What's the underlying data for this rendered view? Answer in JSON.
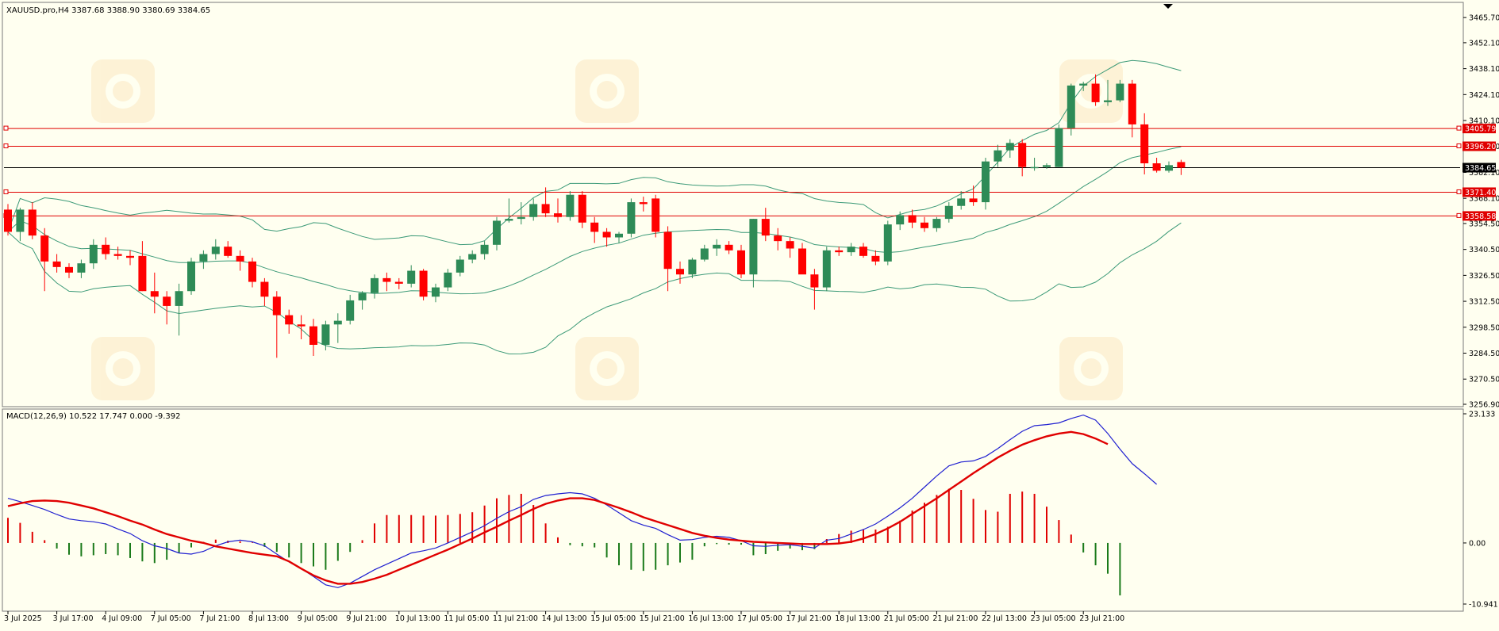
{
  "chart_data": [
    {
      "type": "candlestick",
      "title": "XAUUSD.pro,H4",
      "ohlc_text": "3387.68 3388.90 3380.69 3384.65",
      "ylim": [
        3256.9,
        3472.6
      ],
      "y_ticks": [
        "3465.70",
        "3452.10",
        "3438.10",
        "3424.10",
        "3410.10",
        "3396.10",
        "3382.10",
        "3368.10",
        "3354.50",
        "3340.50",
        "3326.50",
        "3312.50",
        "3298.50",
        "3284.50",
        "3270.50",
        "3256.90"
      ],
      "current_price": "3384.65",
      "levels": [
        {
          "price": 3405.79,
          "label": "3405.79"
        },
        {
          "price": 3396.2,
          "label": "3396.20"
        },
        {
          "price": 3371.4,
          "label": "3371.40"
        },
        {
          "price": 3358.58,
          "label": "3358.58"
        }
      ],
      "candles": [
        [
          3362,
          3365,
          3348,
          3350
        ],
        [
          3350,
          3363,
          3345,
          3362
        ],
        [
          3362,
          3366,
          3346,
          3348
        ],
        [
          3348,
          3352,
          3318,
          3334
        ],
        [
          3334,
          3338,
          3328,
          3331
        ],
        [
          3331,
          3333,
          3325,
          3328
        ],
        [
          3328,
          3335,
          3325,
          3333
        ],
        [
          3333,
          3346,
          3330,
          3343
        ],
        [
          3343,
          3347,
          3335,
          3338
        ],
        [
          3338,
          3342,
          3335,
          3337
        ],
        [
          3337,
          3340,
          3332,
          3336
        ],
        [
          3337,
          3345,
          3318,
          3318
        ],
        [
          3318,
          3328,
          3306,
          3315
        ],
        [
          3315,
          3318,
          3300,
          3310
        ],
        [
          3310,
          3322,
          3294,
          3318
        ],
        [
          3318,
          3336,
          3316,
          3334
        ],
        [
          3334,
          3340,
          3330,
          3338
        ],
        [
          3338,
          3346,
          3335,
          3342
        ],
        [
          3342,
          3345,
          3336,
          3337
        ],
        [
          3337,
          3340,
          3329,
          3334
        ],
        [
          3334,
          3336,
          3320,
          3323
        ],
        [
          3323,
          3325,
          3310,
          3315
        ],
        [
          3315,
          3318,
          3282,
          3305
        ],
        [
          3305,
          3308,
          3295,
          3300
        ],
        [
          3300,
          3305,
          3292,
          3299
        ],
        [
          3299,
          3303,
          3283,
          3289
        ],
        [
          3289,
          3302,
          3286,
          3300
        ],
        [
          3300,
          3306,
          3290,
          3302
        ],
        [
          3302,
          3316,
          3300,
          3313
        ],
        [
          3313,
          3318,
          3308,
          3317
        ],
        [
          3317,
          3327,
          3314,
          3325
        ],
        [
          3325,
          3328,
          3318,
          3323
        ],
        [
          3323,
          3325,
          3319,
          3322
        ],
        [
          3322,
          3332,
          3320,
          3329
        ],
        [
          3329,
          3330,
          3313,
          3315
        ],
        [
          3315,
          3322,
          3312,
          3320
        ],
        [
          3320,
          3330,
          3318,
          3328
        ],
        [
          3328,
          3337,
          3326,
          3335
        ],
        [
          3335,
          3340,
          3333,
          3338
        ],
        [
          3338,
          3345,
          3335,
          3343
        ],
        [
          3343,
          3358,
          3340,
          3356
        ],
        [
          3356,
          3368,
          3355,
          3357
        ],
        [
          3357,
          3366,
          3354,
          3358
        ],
        [
          3358,
          3368,
          3356,
          3365
        ],
        [
          3365,
          3374,
          3358,
          3360
        ],
        [
          3360,
          3368,
          3355,
          3358
        ],
        [
          3358,
          3372,
          3356,
          3370
        ],
        [
          3370,
          3372,
          3352,
          3355
        ],
        [
          3355,
          3358,
          3344,
          3350
        ],
        [
          3350,
          3352,
          3342,
          3347
        ],
        [
          3347,
          3350,
          3344,
          3349
        ],
        [
          3349,
          3368,
          3347,
          3366
        ],
        [
          3366,
          3369,
          3361,
          3365
        ],
        [
          3368,
          3370,
          3347,
          3350
        ],
        [
          3350,
          3353,
          3318,
          3330
        ],
        [
          3330,
          3334,
          3322,
          3327
        ],
        [
          3327,
          3336,
          3325,
          3335
        ],
        [
          3335,
          3343,
          3334,
          3341
        ],
        [
          3341,
          3346,
          3337,
          3343
        ],
        [
          3343,
          3345,
          3338,
          3340
        ],
        [
          3340,
          3343,
          3325,
          3327
        ],
        [
          3327,
          3357,
          3320,
          3357
        ],
        [
          3357,
          3363,
          3345,
          3348
        ],
        [
          3348,
          3352,
          3340,
          3345
        ],
        [
          3345,
          3347,
          3336,
          3341
        ],
        [
          3341,
          3344,
          3328,
          3327
        ],
        [
          3327,
          3330,
          3308,
          3320
        ],
        [
          3320,
          3342,
          3318,
          3340
        ],
        [
          3340,
          3342,
          3337,
          3339
        ],
        [
          3339,
          3344,
          3337,
          3342
        ],
        [
          3342,
          3344,
          3336,
          3337
        ],
        [
          3337,
          3340,
          3332,
          3334
        ],
        [
          3334,
          3356,
          3332,
          3354
        ],
        [
          3354,
          3361,
          3351,
          3359
        ],
        [
          3359,
          3362,
          3352,
          3355
        ],
        [
          3355,
          3358,
          3350,
          3352
        ],
        [
          3352,
          3358,
          3350,
          3357
        ],
        [
          3357,
          3366,
          3355,
          3364
        ],
        [
          3364,
          3372,
          3362,
          3368
        ],
        [
          3368,
          3375,
          3364,
          3366
        ],
        [
          3366,
          3390,
          3362,
          3388
        ],
        [
          3388,
          3397,
          3385,
          3394
        ],
        [
          3394,
          3400,
          3390,
          3398
        ],
        [
          3398,
          3400,
          3380,
          3385
        ],
        [
          3385,
          3390,
          3383,
          3385
        ],
        [
          3385,
          3387,
          3384,
          3386
        ],
        [
          3385,
          3408,
          3385,
          3406
        ],
        [
          3406,
          3430,
          3402,
          3429
        ],
        [
          3429,
          3431,
          3426,
          3430
        ],
        [
          3430,
          3435,
          3418,
          3420
        ],
        [
          3420,
          3432,
          3418,
          3421
        ],
        [
          3421,
          3432,
          3420,
          3430
        ],
        [
          3430,
          3432,
          3401,
          3408
        ],
        [
          3408,
          3414,
          3381,
          3387
        ],
        [
          3387,
          3390,
          3382,
          3383
        ],
        [
          3383,
          3388,
          3382,
          3386
        ],
        [
          3387.68,
          3388.9,
          3380.69,
          3384.65
        ]
      ],
      "x_labels": [
        "3 Jul 2025",
        "3 Jul 17:00",
        "4 Jul 09:00",
        "7 Jul 05:00",
        "7 Jul 21:00",
        "8 Jul 13:00",
        "9 Jul 05:00",
        "9 Jul 21:00",
        "10 Jul 13:00",
        "11 Jul 05:00",
        "11 Jul 21:00",
        "14 Jul 13:00",
        "15 Jul 05:00",
        "15 Jul 21:00",
        "16 Jul 13:00",
        "17 Jul 05:00",
        "17 Jul 21:00",
        "18 Jul 13:00",
        "21 Jul 05:00",
        "21 Jul 21:00",
        "22 Jul 13:00",
        "23 Jul 05:00",
        "23 Jul 21:00"
      ],
      "bollinger_bands": {
        "color": "#3c9a78"
      },
      "colors": {
        "bull": "#2e8b57",
        "bear": "#ff0000",
        "level": "#e00000",
        "current_line": "#000000"
      }
    },
    {
      "type": "macd",
      "title": "MACD(12,26,9) 10.522 17.747 0.000 -9.392",
      "ylim": [
        -10.941,
        23.133
      ],
      "y_ticks": [
        "23.133",
        "0.00",
        "-10.941"
      ],
      "macd_line": [
        8.0,
        7.4,
        6.7,
        6.0,
        5.1,
        4.3,
        4.0,
        3.8,
        3.4,
        2.5,
        1.7,
        0.4,
        -0.5,
        -1.0,
        -1.8,
        -2.0,
        -1.5,
        -0.5,
        0.2,
        0.5,
        0.2,
        -0.5,
        -2.0,
        -3.4,
        -4.6,
        -6.0,
        -7.5,
        -8.0,
        -7.2,
        -6.0,
        -4.8,
        -3.8,
        -2.8,
        -1.8,
        -1.4,
        -0.9,
        0.0,
        1.0,
        2.0,
        3.1,
        4.4,
        5.6,
        6.5,
        7.8,
        8.5,
        8.8,
        9.0,
        8.8,
        8.0,
        6.8,
        5.4,
        4.0,
        3.2,
        2.6,
        1.5,
        0.5,
        0.6,
        1.0,
        1.2,
        1.0,
        0.4,
        -0.5,
        -0.6,
        -0.4,
        -0.3,
        -0.6,
        -0.9,
        0.5,
        0.8,
        1.6,
        2.4,
        3.4,
        4.8,
        6.3,
        8.0,
        10.0,
        12.0,
        13.8,
        14.5,
        14.7,
        15.5,
        16.9,
        18.5,
        20.0,
        21.0,
        21.2,
        21.5,
        22.3,
        22.9,
        22.0,
        19.6,
        16.8,
        14.2,
        12.4,
        10.5
      ],
      "signal_line": [
        6.6,
        7.1,
        7.5,
        7.6,
        7.5,
        7.2,
        6.7,
        6.2,
        5.5,
        4.8,
        4.0,
        3.3,
        2.4,
        1.6,
        1.0,
        0.4,
        0.0,
        -0.6,
        -1.0,
        -1.4,
        -1.8,
        -2.1,
        -2.4,
        -3.3,
        -4.6,
        -5.8,
        -6.7,
        -7.3,
        -7.3,
        -7.0,
        -6.4,
        -5.7,
        -4.8,
        -3.9,
        -3.0,
        -2.1,
        -1.2,
        -0.2,
        0.8,
        1.9,
        2.9,
        4.0,
        5.0,
        6.1,
        7.0,
        7.6,
        8.0,
        8.0,
        7.7,
        7.0,
        6.3,
        5.5,
        4.6,
        3.9,
        3.2,
        2.5,
        1.8,
        1.3,
        0.9,
        0.6,
        0.4,
        0.2,
        0.1,
        0.0,
        -0.1,
        -0.2,
        -0.2,
        -0.2,
        -0.1,
        0.2,
        0.8,
        1.6,
        2.6,
        3.8,
        5.2,
        6.6,
        8.0,
        9.5,
        11.0,
        12.5,
        13.9,
        15.3,
        16.5,
        17.6,
        18.4,
        19.1,
        19.6,
        19.9,
        19.5,
        18.7,
        17.7
      ],
      "histogram": [
        4.5,
        3.6,
        2.0,
        0.5,
        -1.0,
        -2.1,
        -2.4,
        -2.2,
        -2.0,
        -2.2,
        -2.7,
        -3.3,
        -3.6,
        -3.0,
        -1.8,
        -0.8,
        0.2,
        0.6,
        0.4,
        0.3,
        0.1,
        -0.7,
        -1.6,
        -2.6,
        -3.6,
        -4.2,
        -4.8,
        -3.2,
        -1.6,
        0.5,
        3.5,
        5.0,
        5.0,
        5.0,
        4.9,
        4.9,
        5.0,
        5.2,
        5.5,
        6.7,
        8.0,
        8.6,
        8.8,
        6.8,
        3.5,
        1.0,
        -0.4,
        -0.6,
        -0.8,
        -2.6,
        -4.0,
        -4.8,
        -5.0,
        -4.8,
        -4.0,
        -3.5,
        -3.0,
        -0.6,
        -0.2,
        -0.3,
        -0.3,
        -2.2,
        -2.0,
        -1.4,
        -1.0,
        -1.3,
        -1.1,
        0.7,
        1.6,
        2.2,
        2.4,
        2.4,
        2.9,
        4.0,
        5.8,
        7.2,
        8.6,
        9.7,
        9.5,
        7.9,
        5.9,
        5.6,
        8.8,
        9.2,
        8.8,
        6.5,
        4.1,
        1.5,
        -1.7,
        -4.0,
        -5.5,
        -9.392
      ],
      "colors": {
        "macd": "#2020d0",
        "signal": "#e00000",
        "hist_pos": "#e00000",
        "hist_neg": "#1a7a1a"
      }
    }
  ]
}
